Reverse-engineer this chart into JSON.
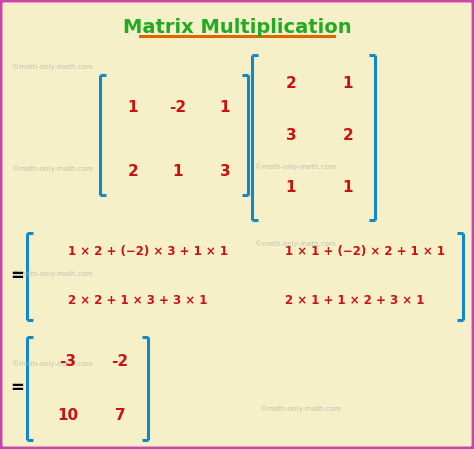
{
  "title": "Matrix Multiplication",
  "title_color": "#22aa22",
  "title_fontsize": 14,
  "underline_color": "#dd6600",
  "background_color": "#f5f0c8",
  "border_color": "#cc44aa",
  "bracket_color": "#1188cc",
  "text_color": "#cc1111",
  "watermark_color": "#aaaaaa",
  "watermark_text": "©math-only-math.com",
  "bracket_lw": 2.2,
  "matrix1": [
    [
      "1",
      "-2",
      "1"
    ],
    [
      "2",
      "1",
      "3"
    ]
  ],
  "matrix2": [
    [
      "2",
      "1"
    ],
    [
      "3",
      "2"
    ],
    [
      "1",
      "1"
    ]
  ],
  "step_row1_left": "1 × 2 + (−2) × 3 + 1 × 1",
  "step_row1_right": "1 × 1 + (−2) × 2 + 1 × 1",
  "step_row2_left": "2 × 2 + 1 × 3 + 3 × 1",
  "step_row2_right": "2 × 1 + 1 × 2 + 3 × 1",
  "result": [
    [
      "-3",
      "-2"
    ],
    [
      "10",
      "7"
    ]
  ]
}
